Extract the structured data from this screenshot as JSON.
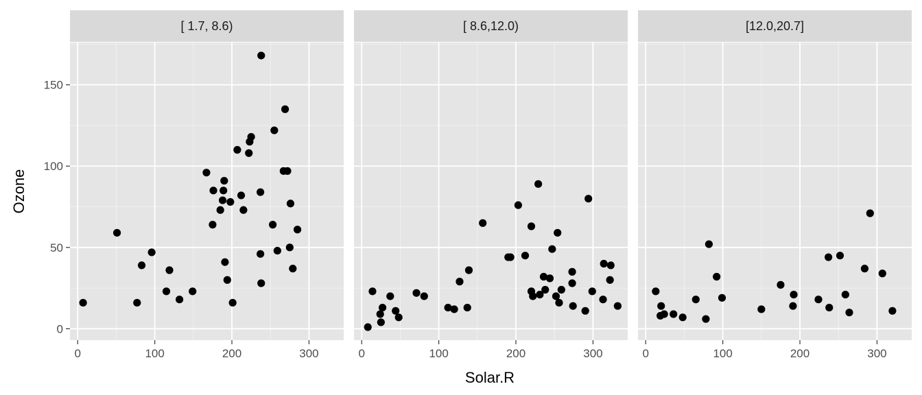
{
  "chart_data": {
    "type": "scatter",
    "xlabel": "Solar.R",
    "ylabel": "Ozone",
    "xlim": [
      -10,
      345
    ],
    "ylim": [
      -7,
      176
    ],
    "x_ticks": [
      0,
      100,
      200,
      300
    ],
    "y_ticks": [
      0,
      50,
      100,
      150
    ],
    "grid": true,
    "colors": {
      "panel_bg": "#e5e5e5",
      "strip_bg": "#d9d9d9",
      "grid_major": "#ffffff",
      "point": "#000000"
    },
    "panels": [
      {
        "label": "[ 1.7, 8.6)",
        "points": [
          [
            7,
            16
          ],
          [
            51,
            59
          ],
          [
            77,
            16
          ],
          [
            83,
            39
          ],
          [
            96,
            47
          ],
          [
            115,
            23
          ],
          [
            119,
            36
          ],
          [
            132,
            18
          ],
          [
            149,
            23
          ],
          [
            167,
            96
          ],
          [
            175,
            64
          ],
          [
            176,
            85
          ],
          [
            185,
            73
          ],
          [
            188,
            79
          ],
          [
            189,
            85
          ],
          [
            190,
            91
          ],
          [
            191,
            41
          ],
          [
            194,
            30
          ],
          [
            198,
            78
          ],
          [
            201,
            16
          ],
          [
            207,
            110
          ],
          [
            212,
            82
          ],
          [
            215,
            73
          ],
          [
            222,
            108
          ],
          [
            223,
            115
          ],
          [
            225,
            118
          ],
          [
            237,
            84
          ],
          [
            237,
            46
          ],
          [
            238,
            168
          ],
          [
            238,
            28
          ],
          [
            253,
            64
          ],
          [
            255,
            122
          ],
          [
            259,
            48
          ],
          [
            267,
            97
          ],
          [
            269,
            135
          ],
          [
            272,
            97
          ],
          [
            275,
            50
          ],
          [
            276,
            77
          ],
          [
            279,
            37
          ],
          [
            285,
            61
          ]
        ]
      },
      {
        "label": "[ 8.6,12.0)",
        "points": [
          [
            8,
            1
          ],
          [
            14,
            23
          ],
          [
            24,
            9
          ],
          [
            25,
            4
          ],
          [
            27,
            13
          ],
          [
            37,
            20
          ],
          [
            44,
            11
          ],
          [
            48,
            7
          ],
          [
            71,
            22
          ],
          [
            81,
            20
          ],
          [
            112,
            13
          ],
          [
            120,
            12
          ],
          [
            127,
            29
          ],
          [
            137,
            13
          ],
          [
            139,
            36
          ],
          [
            157,
            65
          ],
          [
            190,
            44
          ],
          [
            193,
            44
          ],
          [
            203,
            76
          ],
          [
            212,
            45
          ],
          [
            220,
            63
          ],
          [
            220,
            23
          ],
          [
            222,
            20
          ],
          [
            229,
            89
          ],
          [
            231,
            21
          ],
          [
            236,
            32
          ],
          [
            238,
            24
          ],
          [
            244,
            31
          ],
          [
            247,
            49
          ],
          [
            252,
            20
          ],
          [
            254,
            59
          ],
          [
            256,
            16
          ],
          [
            259,
            24
          ],
          [
            273,
            35
          ],
          [
            273,
            28
          ],
          [
            274,
            14
          ],
          [
            290,
            11
          ],
          [
            294,
            80
          ],
          [
            299,
            23
          ],
          [
            313,
            18
          ],
          [
            314,
            40
          ],
          [
            322,
            30
          ],
          [
            323,
            39
          ],
          [
            332,
            14
          ]
        ]
      },
      {
        "label": "[12.0,20.7]",
        "points": [
          [
            13,
            23
          ],
          [
            19,
            8
          ],
          [
            20,
            14
          ],
          [
            24,
            9
          ],
          [
            36,
            9
          ],
          [
            48,
            7
          ],
          [
            65,
            18
          ],
          [
            78,
            6
          ],
          [
            82,
            52
          ],
          [
            92,
            32
          ],
          [
            99,
            19
          ],
          [
            150,
            12
          ],
          [
            175,
            27
          ],
          [
            191,
            14
          ],
          [
            192,
            21
          ],
          [
            224,
            18
          ],
          [
            237,
            44
          ],
          [
            238,
            13
          ],
          [
            252,
            45
          ],
          [
            259,
            21
          ],
          [
            264,
            10
          ],
          [
            284,
            37
          ],
          [
            291,
            71
          ],
          [
            307,
            34
          ],
          [
            320,
            11
          ]
        ]
      }
    ]
  }
}
